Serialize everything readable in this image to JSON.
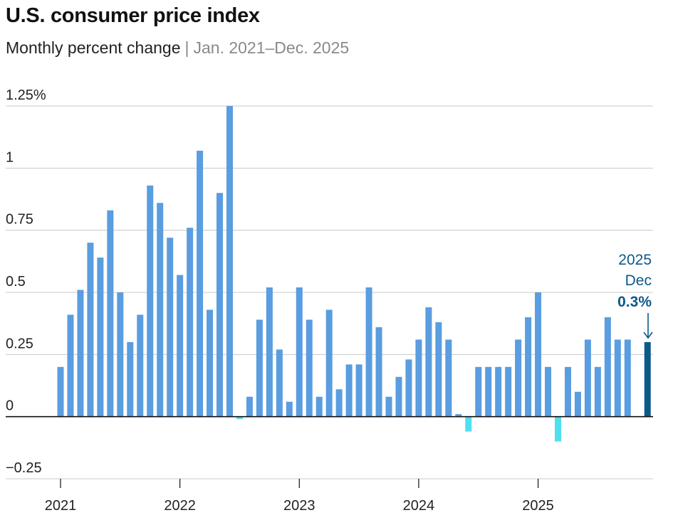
{
  "header": {
    "title": "U.S. consumer price index",
    "subtitle_main": "Monthly percent change",
    "subtitle_sep": "|",
    "subtitle_range": "Jan. 2021–Dec. 2025"
  },
  "colors": {
    "positive": "#5a9de0",
    "negative": "#4fe0f0",
    "highlight": "#0b5a8a",
    "grid": "#c8c8c8",
    "axis": "#111111"
  },
  "chart_data": {
    "type": "bar",
    "ylim": [
      -0.25,
      1.25
    ],
    "yticks": [
      -0.25,
      0,
      0.25,
      0.5,
      0.75,
      1,
      1.25
    ],
    "ytick_labels": [
      "−0.25",
      "0",
      "0.25",
      "0.5",
      "0.75",
      "1",
      "1.25%"
    ],
    "year_labels": [
      "2021",
      "2022",
      "2023",
      "2024",
      "2025"
    ],
    "xlabel": "",
    "ylabel": "",
    "grid": true,
    "series": [
      {
        "values": [
          0.2,
          0.41,
          0.51,
          0.7,
          0.64,
          0.83,
          0.5,
          0.3,
          0.41,
          0.93,
          0.86,
          0.72,
          0.57,
          0.76,
          1.07,
          0.43,
          0.9,
          1.25,
          -0.01,
          0.08,
          0.39,
          0.52,
          0.27,
          0.06,
          0.52,
          0.39,
          0.08,
          0.43,
          0.11,
          0.21,
          0.21,
          0.52,
          0.36,
          0.08,
          0.16,
          0.23,
          0.31,
          0.44,
          0.38,
          0.31,
          0.01,
          -0.06,
          0.2,
          0.2,
          0.2,
          0.2,
          0.31,
          0.4,
          0.5,
          0.2,
          -0.1,
          0.2,
          0.1,
          0.31,
          0.2,
          0.4,
          0.31,
          0.31,
          null,
          0.3
        ],
        "highlight_index": 59
      }
    ],
    "annotation": {
      "year": "2025",
      "month": "Dec",
      "value": "0.3%"
    }
  }
}
